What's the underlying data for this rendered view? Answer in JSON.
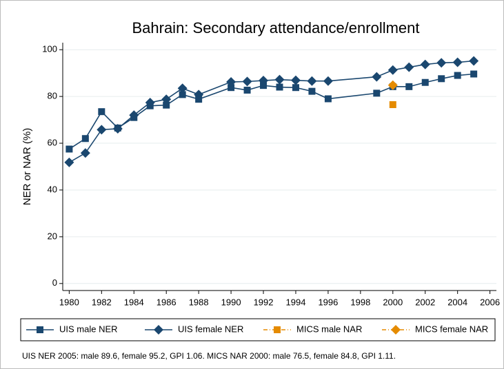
{
  "chart_data": {
    "type": "line",
    "title": "Bahrain: Secondary attendance/enrollment",
    "ylabel": "NER or NAR (%)",
    "note": "UIS NER 2005: male 89.6, female 95.2, GPI 1.06. MICS NAR 2000: male 76.5, female 84.8, GPI 1.11.",
    "xlim": [
      1979.6,
      2006.4
    ],
    "xticks": [
      1980,
      1982,
      1984,
      1986,
      1988,
      1990,
      1992,
      1994,
      1996,
      1998,
      2000,
      2002,
      2004,
      2006
    ],
    "ylim": [
      -3,
      103
    ],
    "yticks": [
      0,
      20,
      40,
      60,
      80,
      100
    ],
    "grid": true,
    "legend": "bottom",
    "series": [
      {
        "name": "UIS male NER",
        "color": "#1a476f",
        "marker": "square",
        "line": "solid",
        "x": [
          1980,
          1981,
          1982,
          1983,
          1984,
          1985,
          1986,
          1987,
          1988,
          1990,
          1991,
          1992,
          1993,
          1994,
          1995,
          1996,
          1999,
          2000,
          2001,
          2002,
          2003,
          2004,
          2005
        ],
        "values": [
          57.5,
          62,
          73.5,
          66.5,
          71,
          76,
          76.3,
          80.8,
          78.8,
          83.8,
          82.7,
          84.7,
          84,
          83.8,
          82.2,
          79,
          81.4,
          84.2,
          84.2,
          86,
          87.6,
          89,
          89.6
        ]
      },
      {
        "name": "UIS female NER",
        "color": "#1a476f",
        "marker": "diamond",
        "line": "solid",
        "x": [
          1980,
          1981,
          1982,
          1983,
          1984,
          1985,
          1986,
          1987,
          1988,
          1990,
          1991,
          1992,
          1993,
          1994,
          1995,
          1996,
          1999,
          2000,
          2001,
          2002,
          2003,
          2004,
          2005
        ],
        "values": [
          51.8,
          55.8,
          65.8,
          66.2,
          72,
          77.4,
          78.8,
          83.5,
          80.8,
          86.2,
          86.4,
          86.8,
          87.2,
          86.9,
          86.6,
          86.6,
          88.4,
          91.3,
          92.5,
          93.7,
          94.4,
          94.6,
          95.2
        ]
      },
      {
        "name": "MICS male NAR",
        "color": "#e58b00",
        "marker": "square",
        "line": "dashdot",
        "x": [
          2000
        ],
        "values": [
          76.5
        ]
      },
      {
        "name": "MICS female NAR",
        "color": "#e58b00",
        "marker": "diamond",
        "line": "dashdot",
        "x": [
          2000
        ],
        "values": [
          84.8
        ]
      }
    ]
  }
}
